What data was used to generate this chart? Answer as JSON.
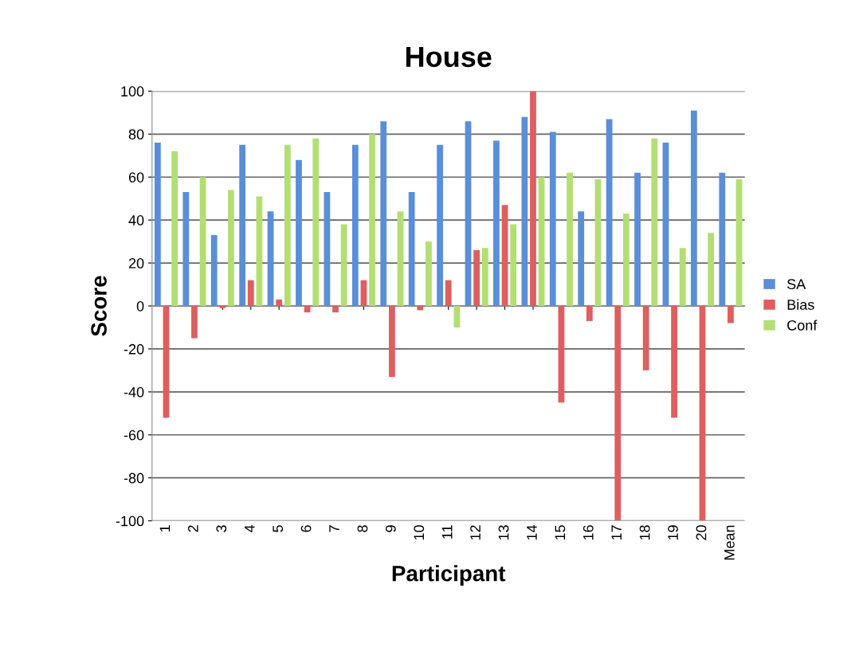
{
  "chart_data": {
    "type": "bar",
    "title": "House",
    "xlabel": "Participant",
    "ylabel": "Score",
    "categories": [
      "1",
      "2",
      "3",
      "4",
      "5",
      "6",
      "7",
      "8",
      "9",
      "10",
      "11",
      "12",
      "13",
      "14",
      "15",
      "16",
      "17",
      "18",
      "19",
      "20",
      "Mean"
    ],
    "series": [
      {
        "name": "SA",
        "color": "#5b8ed8",
        "values": [
          76,
          53,
          33,
          75,
          44,
          68,
          53,
          75,
          86,
          53,
          75,
          86,
          77,
          88,
          81,
          44,
          87,
          62,
          76,
          91,
          62
        ]
      },
      {
        "name": "Bias",
        "color": "#dd5f5f",
        "values": [
          -52,
          -15,
          -1,
          12,
          3,
          -3,
          -3,
          12,
          -33,
          -2,
          12,
          26,
          47,
          100,
          -45,
          -7,
          -100,
          -30,
          -52,
          -100,
          -8
        ]
      },
      {
        "name": "Conf",
        "color": "#b3de74",
        "values": [
          72,
          60,
          54,
          51,
          75,
          78,
          38,
          80,
          44,
          30,
          -10,
          27,
          38,
          60,
          62,
          59,
          43,
          78,
          27,
          34,
          59
        ]
      }
    ],
    "ylim": [
      -100,
      100
    ],
    "yticks": [
      -100,
      -80,
      -60,
      -40,
      -20,
      0,
      20,
      40,
      60,
      80,
      100
    ],
    "grid": "y",
    "legend": "right"
  }
}
